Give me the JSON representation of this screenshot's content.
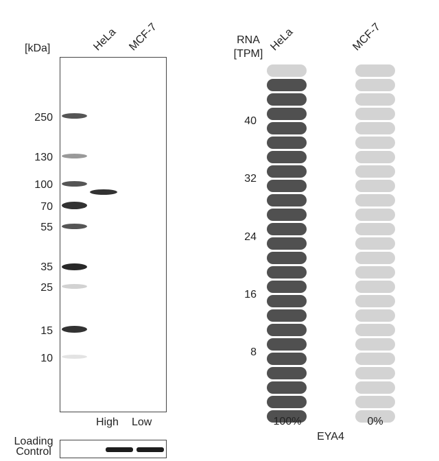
{
  "western_blot": {
    "unit_label": "[kDa]",
    "lanes": [
      "HeLa",
      "MCF-7"
    ],
    "markers": [
      "250",
      "130",
      "100",
      "70",
      "55",
      "35",
      "25",
      "15",
      "10"
    ],
    "expression": [
      "High",
      "Low"
    ],
    "loading_control_label": "Loading Control"
  },
  "chart_data": {
    "type": "bar",
    "title": "",
    "ylabel": "RNA [TPM]",
    "ylabel_lines": [
      "RNA",
      "[TPM]"
    ],
    "yticks": [
      "40",
      "32",
      "24",
      "16",
      "8"
    ],
    "ylim": [
      0,
      50
    ],
    "units_total": 25,
    "categories": [
      "HeLa",
      "MCF-7"
    ],
    "series": [
      {
        "values": [
          48,
          0
        ]
      }
    ],
    "filled_units": [
      24,
      0
    ],
    "percent_labels": [
      "100%",
      "0%"
    ],
    "gene": "EYA4",
    "colors": {
      "filled": "#505050",
      "empty": "#d3d3d3"
    }
  }
}
